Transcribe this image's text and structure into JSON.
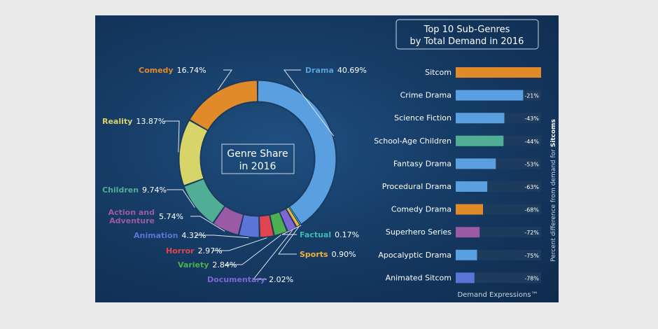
{
  "colors": {
    "drama": "#5a9fe0",
    "comedy": "#e08a2a",
    "reality": "#d7d46a",
    "children": "#4fae94",
    "action": "#9b5aa6",
    "animation": "#5a74d8",
    "horror": "#e0444e",
    "variety": "#4caf50",
    "documentary": "#7f66d6",
    "sports": "#f2b13c",
    "factual": "#3fb8b0",
    "track": "#1d3b5d"
  },
  "chart_data": [
    {
      "type": "pie",
      "title": "Genre Share in 2016",
      "title_lines": [
        "Genre Share",
        "in 2016"
      ],
      "slices": [
        {
          "key": "drama",
          "label": "Drama",
          "value": 40.69,
          "value_text": "40.69%",
          "color": "#5a9fe0"
        },
        {
          "key": "factual",
          "label": "Factual",
          "value": 0.17,
          "value_text": "0.17%",
          "color": "#3fb8b0"
        },
        {
          "key": "sports",
          "label": "Sports",
          "value": 0.9,
          "value_text": "0.90%",
          "color": "#f2b13c"
        },
        {
          "key": "documentary",
          "label": "Documentary",
          "value": 2.02,
          "value_text": "2.02%",
          "color": "#7f66d6"
        },
        {
          "key": "variety",
          "label": "Variety",
          "value": 2.84,
          "value_text": "2.84%",
          "color": "#4caf50"
        },
        {
          "key": "horror",
          "label": "Horror",
          "value": 2.97,
          "value_text": "2.97%",
          "color": "#e0444e"
        },
        {
          "key": "animation",
          "label": "Animation",
          "value": 4.32,
          "value_text": "4.32%",
          "color": "#5a74d8"
        },
        {
          "key": "action",
          "label": "Action and Adventure",
          "label_lines": [
            "Action and",
            "Adventure"
          ],
          "value": 5.74,
          "value_text": "5.74%",
          "color": "#9b5aa6"
        },
        {
          "key": "children",
          "label": "Children",
          "value": 9.74,
          "value_text": "9.74%",
          "color": "#4fae94"
        },
        {
          "key": "reality",
          "label": "Reality",
          "value": 13.87,
          "value_text": "13.87%",
          "color": "#d7d46a"
        },
        {
          "key": "comedy",
          "label": "Comedy",
          "value": 16.74,
          "value_text": "16.74%",
          "color": "#e08a2a"
        }
      ]
    },
    {
      "type": "bar",
      "orientation": "horizontal",
      "title": "Top 10 Sub-Genres by Total Demand in 2016",
      "title_lines": [
        "Top 10 Sub-Genres",
        "by Total Demand in 2016"
      ],
      "ylabel_prefix": "Percent difference from demand for ",
      "ylabel_bold": "Sitcoms",
      "xlim": [
        0,
        100
      ],
      "categories": [
        "Sitcom",
        "Crime Drama",
        "Science Fiction",
        "School-Age Children",
        "Fantasy Drama",
        "Procedural Drama",
        "Comedy Drama",
        "Superhero Series",
        "Apocalyptic Drama",
        "Animated Sitcom"
      ],
      "values": [
        100,
        79,
        57,
        56,
        47,
        37,
        32,
        28,
        25,
        22
      ],
      "diff_labels": [
        "",
        "-21%",
        "-43%",
        "-44%",
        "-53%",
        "-63%",
        "-68%",
        "-72%",
        "-75%",
        "-78%"
      ],
      "bar_colors": [
        "#e08a2a",
        "#5a9fe0",
        "#5a9fe0",
        "#4fae94",
        "#5a9fe0",
        "#5a9fe0",
        "#e08a2a",
        "#9b5aa6",
        "#5a9fe0",
        "#5a74d8"
      ]
    }
  ],
  "footer": {
    "brand": "Demand Expressions™"
  }
}
